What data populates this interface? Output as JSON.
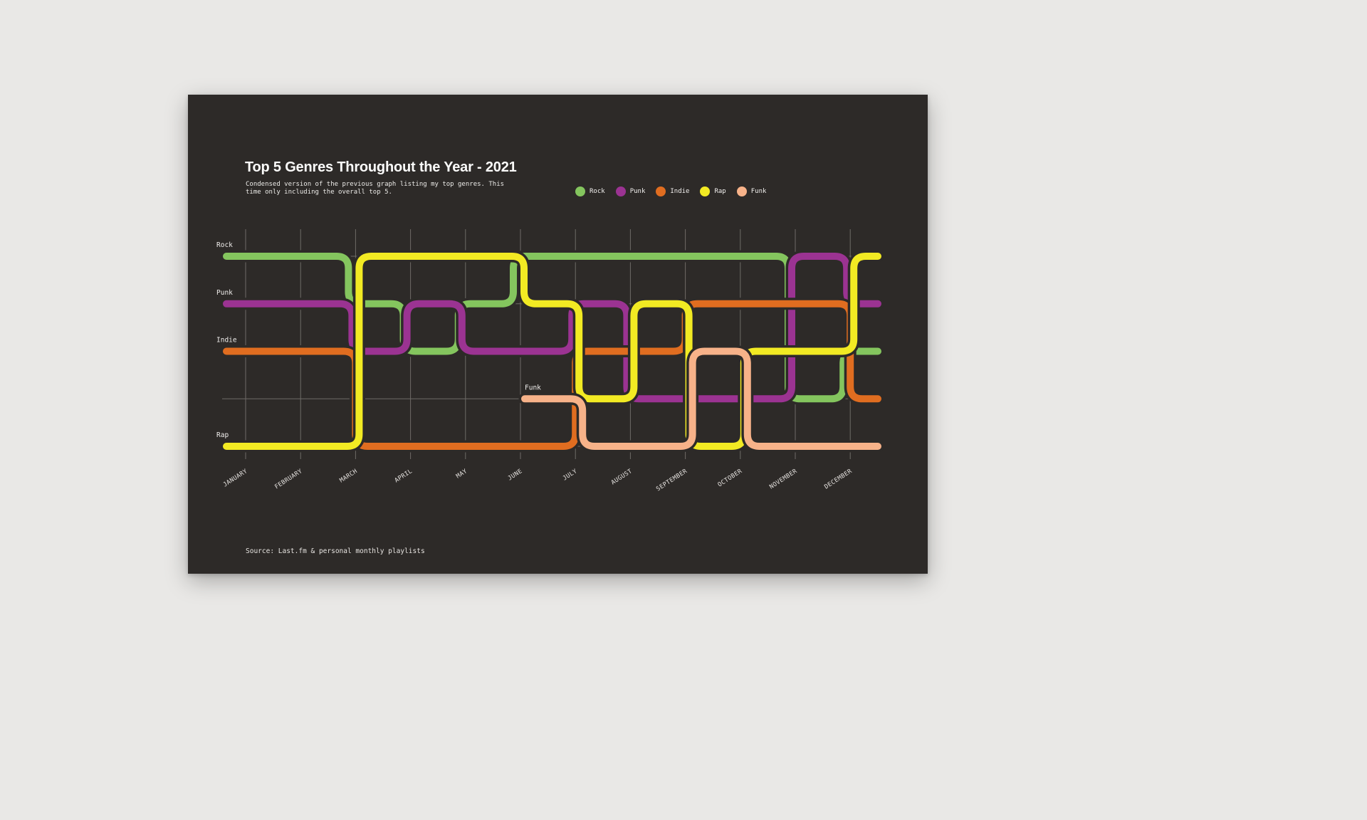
{
  "page": {
    "bg": "#e9e8e6"
  },
  "card": {
    "bg": "#2d2a28"
  },
  "header": {
    "title": "Top 5 Genres Throughout the Year - 2021",
    "subtitle_line1": "Condensed version of the previous graph listing my top genres. This",
    "subtitle_line2": "time only including the overall top 5."
  },
  "source": "Source: Last.fm & personal monthly playlists",
  "chart_data": {
    "type": "bump",
    "title": "Top 5 Genres Throughout the Year - 2021",
    "months": [
      "JANUARY",
      "FEBRUARY",
      "MARCH",
      "APRIL",
      "MAY",
      "JUNE",
      "JULY",
      "AUGUST",
      "SEPTEMBER",
      "OCTOBER",
      "NOVEMBER",
      "DECEMBER"
    ],
    "rank_rows": 5,
    "rank_range": [
      1,
      5
    ],
    "series": [
      {
        "name": "Rock",
        "color": "#84c55e",
        "monthly_ranks": [
          1,
          1,
          1,
          2,
          3,
          2,
          1,
          1,
          1,
          1,
          1,
          4
        ],
        "year_end_rank": 3
      },
      {
        "name": "Punk",
        "color": "#9b3392",
        "monthly_ranks": [
          2,
          2,
          2,
          3,
          2,
          3,
          3,
          2,
          4,
          4,
          4,
          1
        ],
        "year_end_rank": 2
      },
      {
        "name": "Indie",
        "color": "#e06d20",
        "monthly_ranks": [
          3,
          3,
          3,
          5,
          5,
          5,
          5,
          3,
          3,
          2,
          2,
          2
        ],
        "year_end_rank": 4
      },
      {
        "name": "Rap",
        "color": "#f2ea23",
        "monthly_ranks": [
          5,
          5,
          5,
          1,
          1,
          1,
          2,
          4,
          2,
          5,
          3,
          3
        ],
        "year_end_rank": 1
      },
      {
        "name": "Funk",
        "color": "#f7b289",
        "monthly_ranks": [
          null,
          null,
          null,
          null,
          null,
          null,
          4,
          5,
          5,
          3,
          5,
          5
        ],
        "year_end_rank": 5
      }
    ],
    "genre_labels": [
      {
        "text": "Rock",
        "row": 1,
        "at_month": null
      },
      {
        "text": "Punk",
        "row": 2,
        "at_month": null
      },
      {
        "text": "Indie",
        "row": 3,
        "at_month": null
      },
      {
        "text": "Funk",
        "row": 4,
        "at_month": "JUNE"
      },
      {
        "text": "Rap",
        "row": 5,
        "at_month": null
      }
    ],
    "grid": {
      "vertical": true,
      "horizontal": true
    },
    "legend_position": "top-right"
  }
}
